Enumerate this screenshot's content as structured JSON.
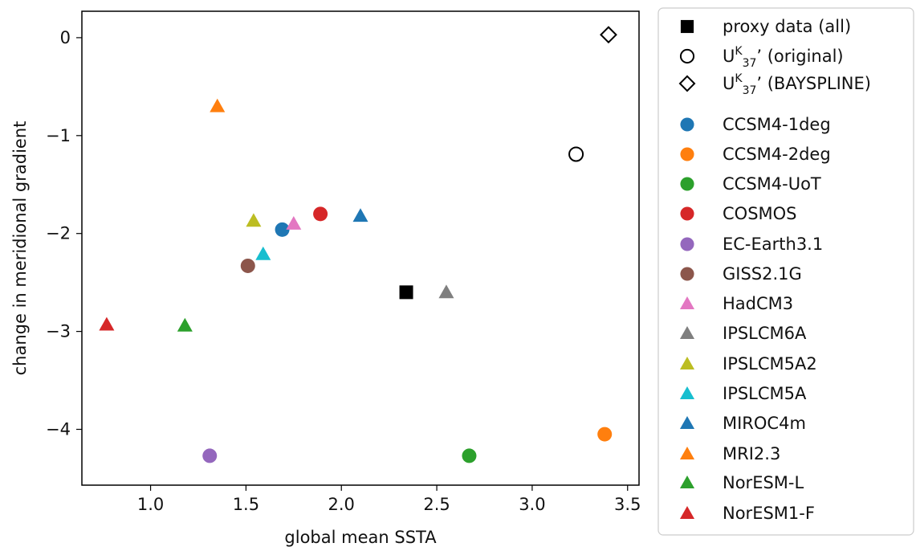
{
  "chart_data": {
    "type": "scatter",
    "xlabel": "global mean SSTA",
    "ylabel": "change in meridional gradient",
    "xlim": [
      0.64,
      3.56
    ],
    "ylim": [
      -4.57,
      0.27
    ],
    "xticks": [
      1.0,
      1.5,
      2.0,
      2.5,
      3.0,
      3.5
    ],
    "xtick_labels": [
      "1.0",
      "1.5",
      "2.0",
      "2.5",
      "3.0",
      "3.5"
    ],
    "yticks": [
      0,
      -1,
      -2,
      -3,
      -4
    ],
    "ytick_labels": [
      "0",
      "−1",
      "−2",
      "−3",
      "−4"
    ],
    "grid": false,
    "legend_position": "outside-right",
    "series": [
      {
        "name": "proxy data (all)",
        "marker": "square",
        "color": "#000000",
        "fill": true,
        "x": 2.34,
        "y": -2.6
      },
      {
        "name": "Uᴷ37' (original)",
        "label_base": "U",
        "label_sup": "K",
        "label_sub": "37",
        "label_rest": "’ (original)",
        "marker": "circle-open",
        "color": "#000000",
        "fill": false,
        "x": 3.23,
        "y": -1.19
      },
      {
        "name": "Uᴷ37' (BAYSPLINE)",
        "label_base": "U",
        "label_sup": "K",
        "label_sub": "37",
        "label_rest": "’ (BAYSPLINE)",
        "marker": "diamond-open",
        "color": "#000000",
        "fill": false,
        "x": 3.4,
        "y": 0.03
      },
      {
        "name": "CCSM4-1deg",
        "marker": "circle",
        "color": "#1f77b4",
        "fill": true,
        "x": 1.69,
        "y": -1.96
      },
      {
        "name": "CCSM4-2deg",
        "marker": "circle",
        "color": "#ff7f0e",
        "fill": true,
        "x": 3.38,
        "y": -4.05
      },
      {
        "name": "CCSM4-UoT",
        "marker": "circle",
        "color": "#2ca02c",
        "fill": true,
        "x": 2.67,
        "y": -4.27
      },
      {
        "name": "COSMOS",
        "marker": "circle",
        "color": "#d62728",
        "fill": true,
        "x": 1.89,
        "y": -1.8
      },
      {
        "name": "EC-Earth3.1",
        "marker": "circle",
        "color": "#9467bd",
        "fill": true,
        "x": 1.31,
        "y": -4.27
      },
      {
        "name": "GISS2.1G",
        "marker": "circle",
        "color": "#8c564b",
        "fill": true,
        "x": 1.51,
        "y": -2.33
      },
      {
        "name": "HadCM3",
        "marker": "triangle",
        "color": "#e377c2",
        "fill": true,
        "x": 1.75,
        "y": -1.9
      },
      {
        "name": "IPSLCM6A",
        "marker": "triangle",
        "color": "#7f7f7f",
        "fill": true,
        "x": 2.55,
        "y": -2.6
      },
      {
        "name": "IPSLCM5A2",
        "marker": "triangle",
        "color": "#bcbd22",
        "fill": true,
        "x": 1.54,
        "y": -1.87
      },
      {
        "name": "IPSLCM5A",
        "marker": "triangle",
        "color": "#17becf",
        "fill": true,
        "x": 1.59,
        "y": -2.21
      },
      {
        "name": "MIROC4m",
        "marker": "triangle",
        "color": "#1f77b4",
        "fill": true,
        "x": 2.1,
        "y": -1.82
      },
      {
        "name": "MRI2.3",
        "marker": "triangle",
        "color": "#ff7f0e",
        "fill": true,
        "x": 1.35,
        "y": -0.7
      },
      {
        "name": "NorESM-L",
        "marker": "triangle",
        "color": "#2ca02c",
        "fill": true,
        "x": 1.18,
        "y": -2.94
      },
      {
        "name": "NorESM1-F",
        "marker": "triangle",
        "color": "#d62728",
        "fill": true,
        "x": 0.77,
        "y": -2.93
      }
    ]
  }
}
